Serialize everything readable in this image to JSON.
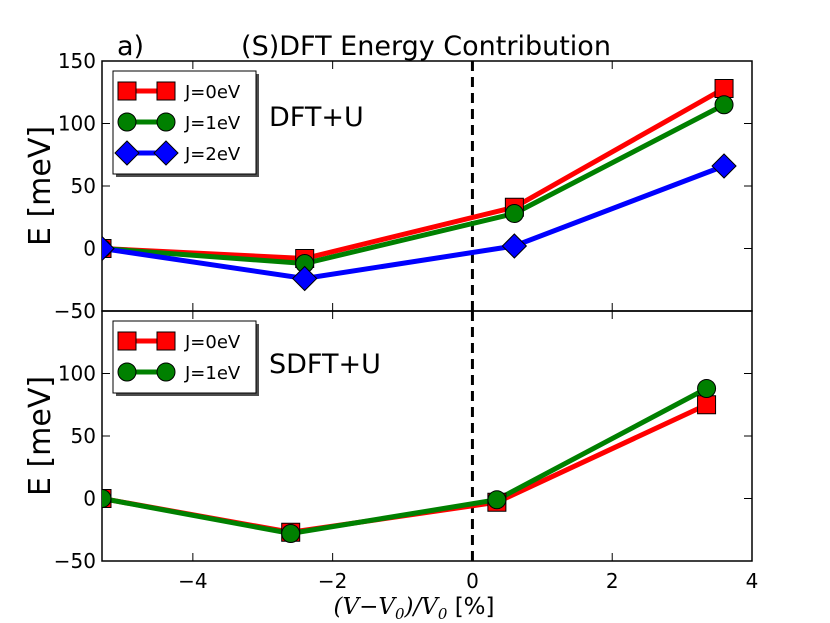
{
  "figure": {
    "panel_label": "a)",
    "title": "(S)DFT Energy Contribution",
    "xlabel_math": "(V−V",
    "xlabel_sub": "0",
    "xlabel_mid": ")/V",
    "xlabel_unit": " [%]"
  },
  "chart_data": [
    {
      "type": "line",
      "name": "top",
      "annotation": "DFT+U",
      "ylabel": "E [meV]",
      "xlim": [
        -5.3,
        4
      ],
      "ylim": [
        -50,
        150
      ],
      "xticks": [
        -4,
        -2,
        0,
        2,
        4
      ],
      "yticks": [
        -50,
        0,
        50,
        100,
        150
      ],
      "ytick_labels": [
        "−50",
        "0",
        "50",
        "100",
        "150"
      ],
      "vline_x": 0,
      "legend_position": "top-left",
      "series": [
        {
          "name": "J=0eV",
          "color": "#ff0000",
          "marker": "square",
          "x": [
            -5.3,
            -2.4,
            0.6,
            3.6
          ],
          "y": [
            0,
            -8,
            33,
            128
          ]
        },
        {
          "name": "J=1eV",
          "color": "#008000",
          "marker": "circle",
          "x": [
            -5.3,
            -2.4,
            0.6,
            3.6
          ],
          "y": [
            0,
            -12,
            28,
            115
          ]
        },
        {
          "name": "J=2eV",
          "color": "#0000ff",
          "marker": "diamond",
          "x": [
            -5.3,
            -2.4,
            0.6,
            3.6
          ],
          "y": [
            0,
            -24,
            2,
            66
          ]
        }
      ]
    },
    {
      "type": "line",
      "name": "bottom",
      "annotation": "SDFT+U",
      "ylabel": "E [meV]",
      "xlim": [
        -5.3,
        4
      ],
      "ylim": [
        -50,
        150
      ],
      "xticks": [
        -4,
        -2,
        0,
        2,
        4
      ],
      "xtick_labels": [
        "−4",
        "−2",
        "0",
        "2",
        "4"
      ],
      "yticks": [
        -50,
        0,
        50,
        100
      ],
      "ytick_labels": [
        "−50",
        "0",
        "50",
        "100"
      ],
      "vline_x": 0,
      "legend_position": "top-left",
      "series": [
        {
          "name": "J=0eV",
          "color": "#ff0000",
          "marker": "square",
          "x": [
            -5.3,
            -2.6,
            0.35,
            3.35
          ],
          "y": [
            0,
            -27,
            -3,
            75
          ]
        },
        {
          "name": "J=1eV",
          "color": "#008000",
          "marker": "circle",
          "x": [
            -5.3,
            -2.6,
            0.35,
            3.35
          ],
          "y": [
            0,
            -28,
            -1,
            88
          ]
        }
      ]
    }
  ]
}
